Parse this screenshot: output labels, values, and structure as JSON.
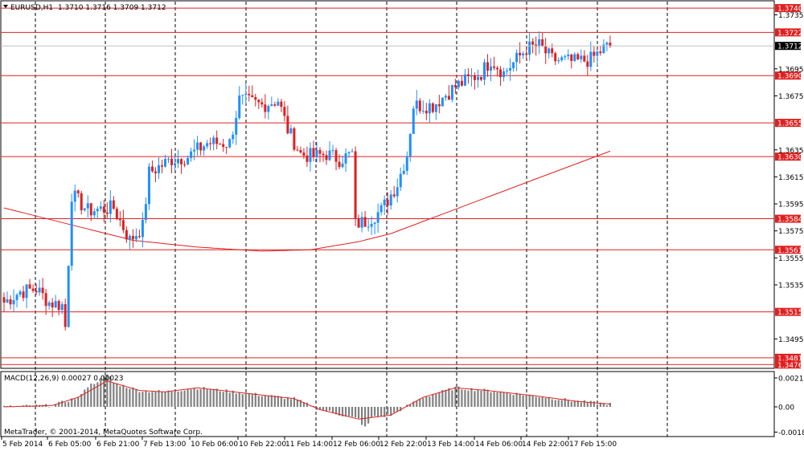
{
  "header": {
    "symbol": "EURUSD,H1",
    "ohlc": "1.3710 1.3716 1.3709 1.3712"
  },
  "macd": {
    "label": "MACD(12,26,9) 0.00027 0.00023",
    "axis_labels": [
      "0.00212",
      "0.00",
      "-0.00185"
    ]
  },
  "copyright": "MetaTrader, © 2001-2014, MetaQuotes Software Corp.",
  "colors": {
    "bull": "#1e90ff",
    "bear": "#e02020",
    "levels": "#e02020",
    "ma": "#e02020",
    "hist": "#808080",
    "signal": "#e02020",
    "grid": "#000000",
    "current": "#000000"
  },
  "chart_data": {
    "type": "candlestick",
    "symbol": "EURUSD",
    "timeframe": "H1",
    "ylim": [
      1.3476,
      1.3735
    ],
    "price_axis_ticks": [
      "1.3735",
      "1.3695",
      "1.3675",
      "1.3635",
      "1.3615",
      "1.3595",
      "1.3575",
      "1.3555",
      "1.3535",
      "1.3495"
    ],
    "x_ticks": [
      "5 Feb 2014",
      "6 Feb 05:00",
      "6 Feb 21:00",
      "7 Feb 13:00",
      "10 Feb 06:00",
      "10 Feb 22:00",
      "11 Feb 14:00",
      "12 Feb 06:00",
      "12 Feb 22:00",
      "13 Feb 14:00",
      "14 Feb 06:00",
      "14 Feb 22:00",
      "17 Feb 15:00"
    ],
    "levels": [
      {
        "label": "1.3740",
        "value": 1.374
      },
      {
        "label": "1.3722",
        "value": 1.3722
      },
      {
        "label": "1.3690",
        "value": 1.369
      },
      {
        "label": "1.3655",
        "value": 1.3655
      },
      {
        "label": "1.3630",
        "value": 1.363
      },
      {
        "label": "1.3584",
        "value": 1.3584
      },
      {
        "label": "1.3561",
        "value": 1.3561
      },
      {
        "label": "1.3515",
        "value": 1.3515
      },
      {
        "label": "1.3481",
        "value": 1.3481
      },
      {
        "label": "1.3476",
        "value": 1.3476
      }
    ],
    "current_price": {
      "label": "1.3712",
      "value": 1.3712
    },
    "close_anchors": [
      [
        0,
        1.3522
      ],
      [
        5,
        1.353
      ],
      [
        10,
        1.3532
      ],
      [
        14,
        1.3522
      ],
      [
        18,
        1.352
      ],
      [
        19,
        1.3504
      ],
      [
        21,
        1.3602
      ],
      [
        26,
        1.359
      ],
      [
        34,
        1.3592
      ],
      [
        39,
        1.3568
      ],
      [
        43,
        1.3578
      ],
      [
        45,
        1.3618
      ],
      [
        52,
        1.3628
      ],
      [
        57,
        1.363
      ],
      [
        63,
        1.364
      ],
      [
        70,
        1.364
      ],
      [
        73,
        1.3672
      ],
      [
        80,
        1.3668
      ],
      [
        85,
        1.3672
      ],
      [
        88,
        1.365
      ],
      [
        92,
        1.3632
      ],
      [
        96,
        1.363
      ],
      [
        100,
        1.3632
      ],
      [
        104,
        1.3628
      ],
      [
        108,
        1.3632
      ],
      [
        109,
        1.358
      ],
      [
        112,
        1.3582
      ],
      [
        117,
        1.359
      ],
      [
        122,
        1.361
      ],
      [
        125,
        1.3632
      ],
      [
        127,
        1.3668
      ],
      [
        133,
        1.3668
      ],
      [
        140,
        1.3682
      ],
      [
        148,
        1.3692
      ],
      [
        151,
        1.3702
      ],
      [
        155,
        1.3692
      ],
      [
        159,
        1.3702
      ],
      [
        162,
        1.371
      ],
      [
        166,
        1.3712
      ],
      [
        170,
        1.3702
      ],
      [
        177,
        1.37
      ],
      [
        182,
        1.3702
      ],
      [
        186,
        1.371
      ],
      [
        188,
        1.3712
      ]
    ],
    "ma_points": [
      [
        0,
        1.3592
      ],
      [
        20,
        1.358
      ],
      [
        40,
        1.3568
      ],
      [
        60,
        1.3563
      ],
      [
        80,
        1.356
      ],
      [
        95,
        1.3561
      ],
      [
        110,
        1.3567
      ],
      [
        120,
        1.3573
      ],
      [
        130,
        1.3582
      ],
      [
        150,
        1.36
      ],
      [
        170,
        1.3618
      ],
      [
        188,
        1.3634
      ]
    ],
    "macd_signal_points": [
      [
        0,
        0.0
      ],
      [
        15,
        0.0001
      ],
      [
        23,
        0.0007
      ],
      [
        32,
        0.0019
      ],
      [
        42,
        0.0012
      ],
      [
        50,
        0.0011
      ],
      [
        60,
        0.0014
      ],
      [
        75,
        0.001
      ],
      [
        90,
        0.0006
      ],
      [
        98,
        -0.0002
      ],
      [
        110,
        -0.0009
      ],
      [
        120,
        -0.0006
      ],
      [
        130,
        0.0007
      ],
      [
        140,
        0.0014
      ],
      [
        150,
        0.0012
      ],
      [
        165,
        0.0008
      ],
      [
        178,
        0.0004
      ],
      [
        188,
        0.0002
      ]
    ],
    "macd_ylim": [
      -0.00185,
      0.00212
    ]
  }
}
